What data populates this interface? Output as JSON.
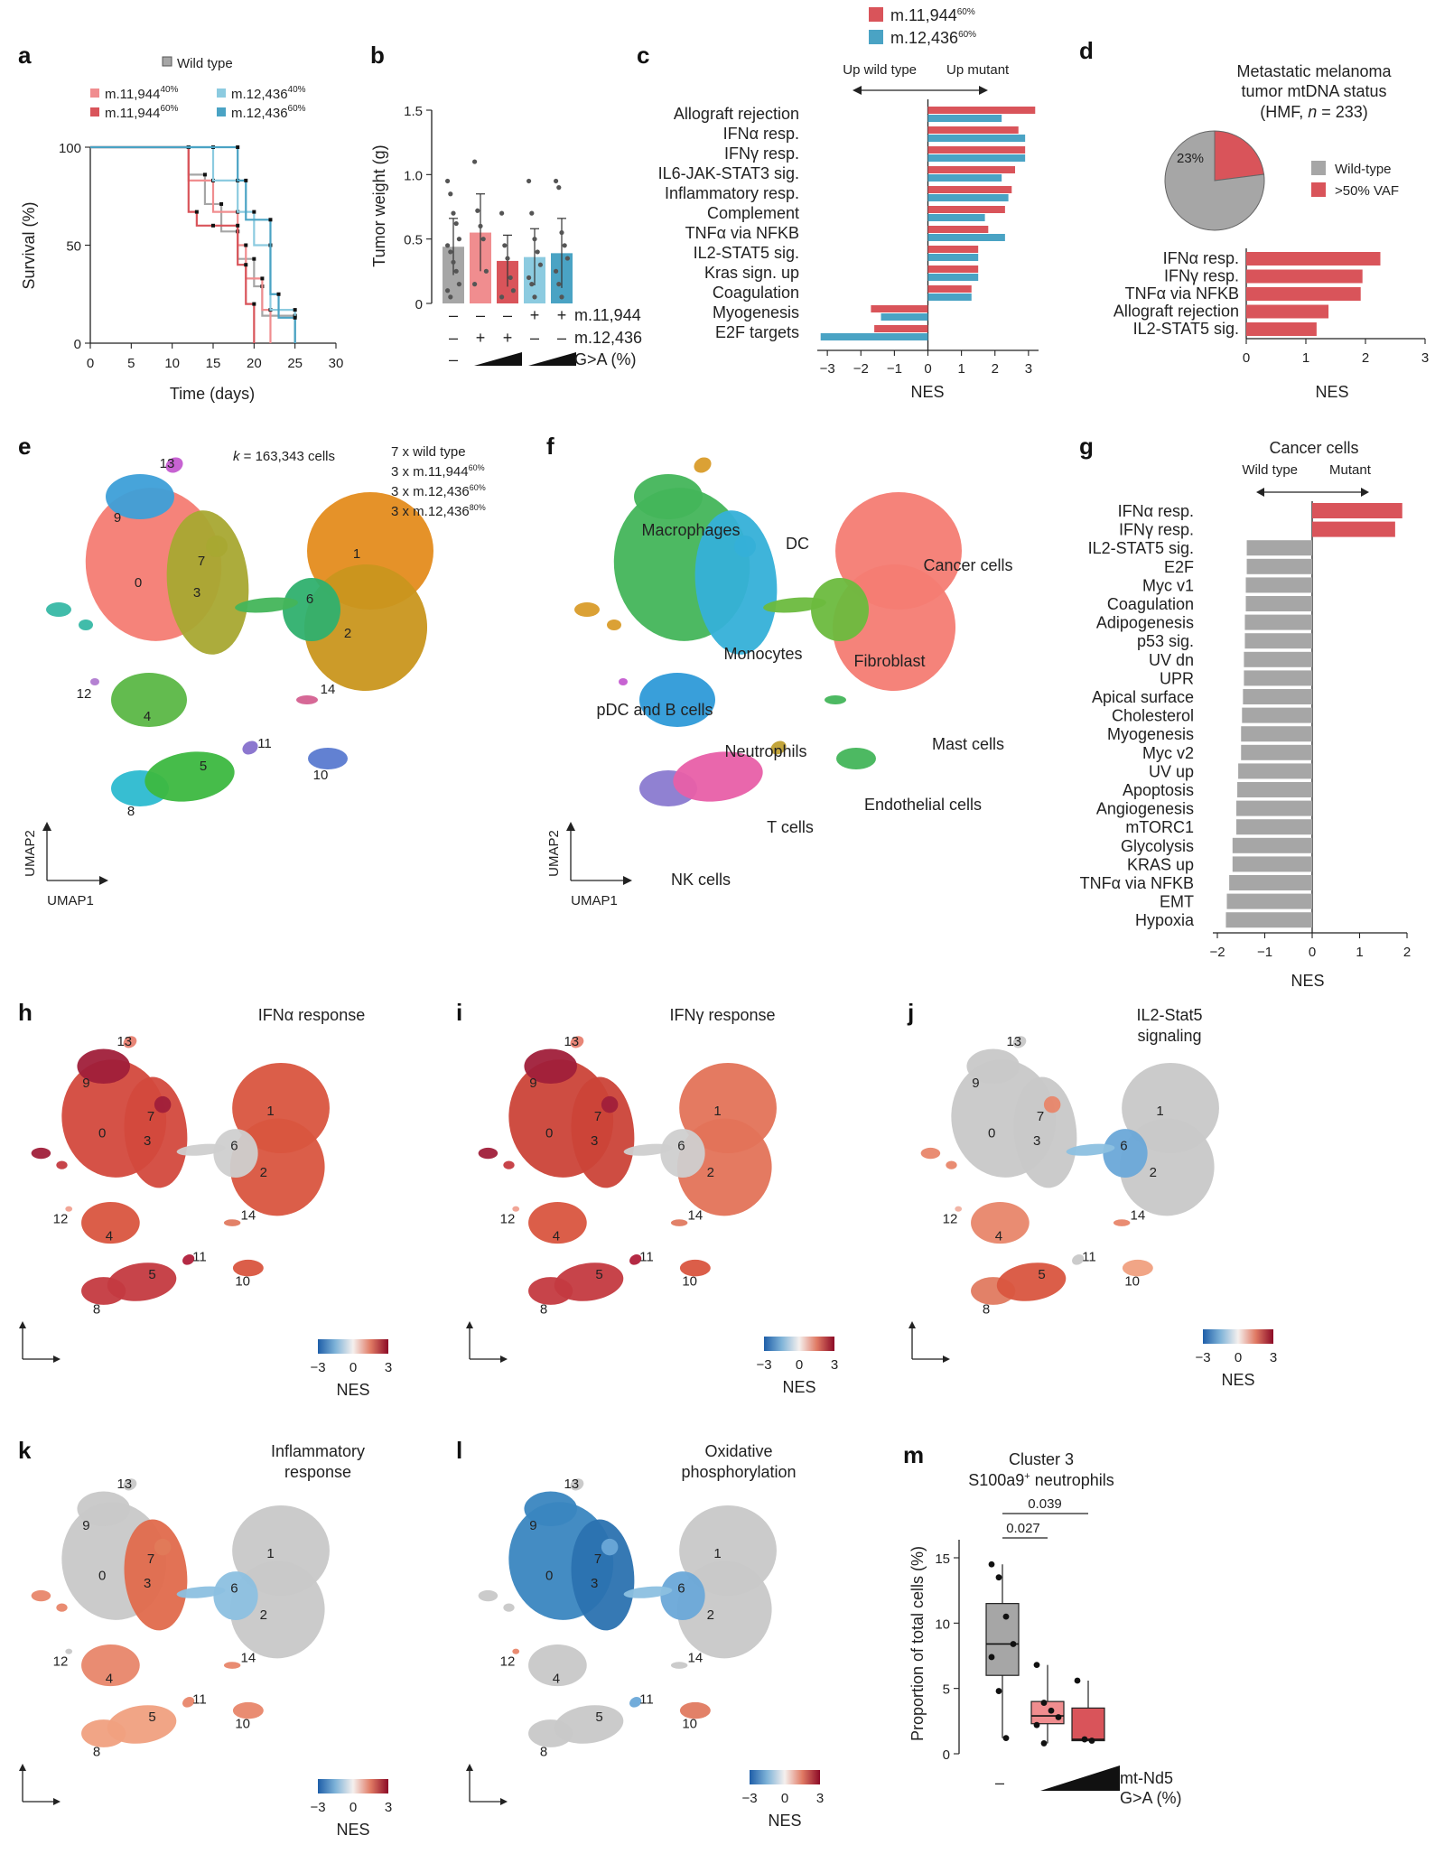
{
  "colors": {
    "red": "#d9545a",
    "blue": "#4aa3c4",
    "gray": "#a6a6a6",
    "light_red": "#f08d8f",
    "light_blue": "#8ccbe0"
  },
  "panel_letters": [
    "a",
    "b",
    "c",
    "d",
    "e",
    "f",
    "g",
    "h",
    "i",
    "j",
    "k",
    "l",
    "m"
  ],
  "panel_a": {
    "legend": {
      "wild_type": "Wild type",
      "m11944_40": "m.11,944",
      "m11944_40_sup": "40%",
      "m11944_60": "m.11,944",
      "m11944_60_sup": "60%",
      "m12436_40": "m.12,436",
      "m12436_40_sup": "40%",
      "m12436_60": "m.12,436",
      "m12436_60_sup": "60%"
    },
    "xlabel": "Time (days)",
    "ylabel": "Survival (%)",
    "xticks": [
      "0",
      "5",
      "10",
      "15",
      "20",
      "25",
      "30"
    ],
    "yticks": [
      "0",
      "50",
      "100"
    ]
  },
  "panel_b": {
    "ylabel": "Tumor weight (g)",
    "yticks": [
      "0",
      "0.5",
      "1.0",
      "1.5"
    ],
    "row_labels": [
      "m.11,944",
      "m.12,436",
      "G>A (%)"
    ],
    "row1": [
      "–",
      "–",
      "–",
      "+",
      "+"
    ],
    "row2": [
      "–",
      "+",
      "+",
      "–",
      "–"
    ],
    "row3": [
      "–"
    ]
  },
  "panel_c": {
    "legend": {
      "s1": "m.11,944",
      "s1_sup": "60%",
      "s2": "m.12,436",
      "s2_sup": "60%"
    },
    "direction_left": "Up wild type",
    "direction_right": "Up mutant",
    "xlabel": "NES",
    "xticks": [
      "−3",
      "−2",
      "−1",
      "0",
      "1",
      "2",
      "3"
    ]
  },
  "panel_d": {
    "title_line1": "Metastatic melanoma",
    "title_line2": "tumor mtDNA status",
    "title_line3_a": "(HMF, ",
    "title_line3_n": "n",
    "title_line3_b": " = 233)",
    "pie_label": "23%",
    "legend_wt": "Wild-type",
    "legend_vaf": ">50% VAF",
    "xlabel": "NES",
    "xticks": [
      "0",
      "1",
      "2",
      "3"
    ]
  },
  "panel_e": {
    "k_label_k": "k",
    "k_label_rest": " = 163,343 cells",
    "samples": [
      "7 x wild type",
      "3 x m.11,944",
      "3 x m.12,436",
      "3 x m.12,436"
    ],
    "sample_sups": [
      "",
      "60%",
      "60%",
      "80%"
    ],
    "cluster_labels": [
      "0",
      "1",
      "2",
      "3",
      "4",
      "5",
      "6",
      "7",
      "8",
      "9",
      "10",
      "11",
      "12",
      "13",
      "14"
    ],
    "umap1": "UMAP1",
    "umap2": "UMAP2"
  },
  "panel_f": {
    "labels": [
      "Macrophages",
      "DC",
      "Cancer cells",
      "Monocytes",
      "Fibroblast",
      "pDC and B cells",
      "Neutrophils",
      "Mast cells",
      "Endothelial cells",
      "T cells",
      "NK cells"
    ],
    "umap1": "UMAP1",
    "umap2": "UMAP2"
  },
  "panel_g": {
    "title": "Cancer cells",
    "direction_left": "Wild type",
    "direction_right": "Mutant",
    "xlabel": "NES",
    "xticks": [
      "−2",
      "−1",
      "0",
      "1",
      "2"
    ]
  },
  "umap_panels": {
    "h_title": "IFNα response",
    "i_title": "IFNγ response",
    "j_title_1": "IL2-Stat5",
    "j_title_2": "signaling",
    "k_title_1": "Inflammatory",
    "k_title_2": "response",
    "l_title_1": "Oxidative",
    "l_title_2": "phosphorylation",
    "scale_ticks": [
      "−3",
      "0",
      "3"
    ],
    "scale_label": "NES"
  },
  "panel_m": {
    "title_1": "Cluster 3",
    "title_2a": "S100a9",
    "title_2sup": "+",
    "title_2b": " neutrophils",
    "ylabel": "Proportion of total cells (%)",
    "yticks": [
      "0",
      "5",
      "10",
      "15"
    ],
    "p1": "0.027",
    "p2": "0.039",
    "x_first": "–",
    "x_label_1": "mt-Nd5",
    "x_label_2": "G>A (%)"
  },
  "chart_data": [
    {
      "id": "a",
      "type": "line",
      "xlabel": "Time (days)",
      "ylabel": "Survival (%)",
      "xlim": [
        0,
        30
      ],
      "ylim": [
        0,
        100
      ],
      "series": [
        {
          "name": "Wild type",
          "color": "#a6a6a6",
          "steps": [
            [
              0,
              100
            ],
            [
              12,
              100
            ],
            [
              12,
              86
            ],
            [
              14,
              86
            ],
            [
              14,
              71
            ],
            [
              16,
              71
            ],
            [
              16,
              57
            ],
            [
              18,
              57
            ],
            [
              18,
              43
            ],
            [
              20,
              43
            ],
            [
              20,
              29
            ],
            [
              21,
              29
            ],
            [
              21,
              14
            ],
            [
              25,
              14
            ],
            [
              25,
              0
            ]
          ]
        },
        {
          "name": "m.11,944 40%",
          "color": "#f08d8f",
          "steps": [
            [
              0,
              100
            ],
            [
              12,
              100
            ],
            [
              12,
              83
            ],
            [
              15,
              83
            ],
            [
              15,
              67
            ],
            [
              18,
              67
            ],
            [
              18,
              50
            ],
            [
              19,
              50
            ],
            [
              19,
              33
            ],
            [
              21,
              33
            ],
            [
              21,
              17
            ],
            [
              22,
              17
            ],
            [
              22,
              0
            ]
          ]
        },
        {
          "name": "m.11,944 60%",
          "color": "#d9545a",
          "steps": [
            [
              0,
              100
            ],
            [
              12,
              100
            ],
            [
              12,
              67
            ],
            [
              13,
              67
            ],
            [
              13,
              60
            ],
            [
              15,
              60
            ],
            [
              15,
              60
            ],
            [
              18,
              60
            ],
            [
              18,
              40
            ],
            [
              19,
              40
            ],
            [
              19,
              20
            ],
            [
              20,
              20
            ],
            [
              20,
              0
            ]
          ]
        },
        {
          "name": "m.12,436 40%",
          "color": "#8ccbe0",
          "steps": [
            [
              0,
              100
            ],
            [
              15,
              100
            ],
            [
              15,
              83
            ],
            [
              18,
              83
            ],
            [
              18,
              67
            ],
            [
              20,
              67
            ],
            [
              20,
              50
            ],
            [
              22,
              50
            ],
            [
              22,
              17
            ],
            [
              25,
              17
            ],
            [
              25,
              0
            ]
          ]
        },
        {
          "name": "m.12,436 60%",
          "color": "#4aa3c4",
          "steps": [
            [
              0,
              100
            ],
            [
              18,
              100
            ],
            [
              18,
              83
            ],
            [
              19,
              83
            ],
            [
              19,
              63
            ],
            [
              22,
              63
            ],
            [
              22,
              25
            ],
            [
              23,
              25
            ],
            [
              23,
              13
            ],
            [
              25,
              13
            ],
            [
              25,
              0
            ]
          ]
        }
      ]
    },
    {
      "id": "b",
      "type": "bar",
      "ylabel": "Tumor weight (g)",
      "ylim": [
        0,
        1.5
      ],
      "values": [
        0.44,
        0.55,
        0.33,
        0.36,
        0.39
      ],
      "errors": [
        0.22,
        0.3,
        0.2,
        0.22,
        0.27
      ],
      "colors": [
        "#a6a6a6",
        "#f08d8f",
        "#d9545a",
        "#8ccbe0",
        "#4aa3c4"
      ],
      "points": [
        [
          0.95,
          0.85,
          0.7,
          0.62,
          0.5,
          0.45,
          0.4,
          0.32,
          0.25,
          0.15,
          0.1,
          0.05
        ],
        [
          1.1,
          0.72,
          0.6,
          0.5,
          0.25,
          0.15
        ],
        [
          0.7,
          0.45,
          0.35,
          0.2,
          0.1,
          0.05
        ],
        [
          0.95,
          0.7,
          0.5,
          0.4,
          0.3,
          0.2,
          0.15,
          0.05
        ],
        [
          0.95,
          0.9,
          0.55,
          0.45,
          0.35,
          0.25,
          0.15,
          0.05
        ]
      ]
    },
    {
      "id": "c",
      "type": "bar",
      "orientation": "horizontal",
      "xlabel": "NES",
      "xlim": [
        -3.3,
        3.3
      ],
      "categories": [
        "Allograft rejection",
        "IFNα resp.",
        "IFNγ resp.",
        "IL6-JAK-STAT3 sig.",
        "Inflammatory resp.",
        "Complement",
        "TNFα via NFKB",
        "IL2-STAT5 sig.",
        "Kras sign. up",
        "Coagulation",
        "Myogenesis",
        "E2F targets"
      ],
      "series": [
        {
          "name": "m.11,944 60%",
          "values": [
            3.2,
            2.7,
            2.9,
            2.6,
            2.5,
            2.3,
            1.8,
            1.5,
            1.5,
            1.3,
            -1.7,
            -1.6
          ]
        },
        {
          "name": "m.12,436 60%",
          "values": [
            2.2,
            2.9,
            2.9,
            2.2,
            2.4,
            1.7,
            2.3,
            1.5,
            1.5,
            1.3,
            -1.4,
            -3.2
          ]
        }
      ]
    },
    {
      "id": "d_pie",
      "type": "pie",
      "slices": [
        {
          "name": "Wild-type",
          "value": 77
        },
        {
          "name": ">50% VAF",
          "value": 23
        }
      ]
    },
    {
      "id": "d_bar",
      "type": "bar",
      "orientation": "horizontal",
      "xlabel": "NES",
      "xlim": [
        0,
        3
      ],
      "categories": [
        "IFNα resp.",
        "IFNγ resp.",
        "TNFα via NFKB",
        "Allograft rejection",
        "IL2-STAT5 sig."
      ],
      "values": [
        2.25,
        1.95,
        1.92,
        1.38,
        1.18
      ]
    },
    {
      "id": "g",
      "type": "bar",
      "orientation": "horizontal",
      "title": "Cancer cells",
      "xlabel": "NES",
      "xlim": [
        -2,
        2
      ],
      "categories": [
        "IFNα resp.",
        "IFNγ resp.",
        "IL2-STAT5 sig.",
        "E2F",
        "Myc v1",
        "Coagulation",
        "Adipogenesis",
        "p53 sig.",
        "UV dn",
        "UPR",
        "Apical surface",
        "Cholesterol",
        "Myogenesis",
        "Myc v2",
        "UV up",
        "Apoptosis",
        "Angiogenesis",
        "mTORC1",
        "Glycolysis",
        "KRAS up",
        "TNFα via NFKB",
        "EMT",
        "Hypoxia"
      ],
      "values": [
        1.9,
        1.75,
        -1.38,
        -1.38,
        -1.4,
        -1.4,
        -1.42,
        -1.42,
        -1.44,
        -1.44,
        -1.46,
        -1.48,
        -1.5,
        -1.5,
        -1.56,
        -1.58,
        -1.6,
        -1.6,
        -1.68,
        -1.68,
        -1.75,
        -1.8,
        -1.82
      ]
    },
    {
      "id": "m",
      "type": "box",
      "title": "Cluster 3 S100a9+ neutrophils",
      "ylabel": "Proportion of total cells (%)",
      "ylim": [
        0,
        15
      ],
      "boxes": [
        {
          "q1": 6,
          "median": 8.4,
          "q3": 11.5,
          "min": 1.2,
          "max": 14.5,
          "points": [
            14.5,
            13.5,
            10.5,
            8.4,
            7.4,
            4.8,
            1.2
          ]
        },
        {
          "q1": 2.3,
          "median": 2.9,
          "q3": 4.0,
          "min": 0.8,
          "max": 6.8,
          "points": [
            6.8,
            3.9,
            3.3,
            2.8,
            2.2,
            0.8
          ]
        },
        {
          "q1": 1.0,
          "median": 1.1,
          "q3": 3.5,
          "min": 1.0,
          "max": 5.6,
          "points": [
            5.6,
            1.1,
            1.0
          ]
        }
      ],
      "colors": [
        "#a6a6a6",
        "#f08d8f",
        "#d9545a"
      ]
    }
  ]
}
